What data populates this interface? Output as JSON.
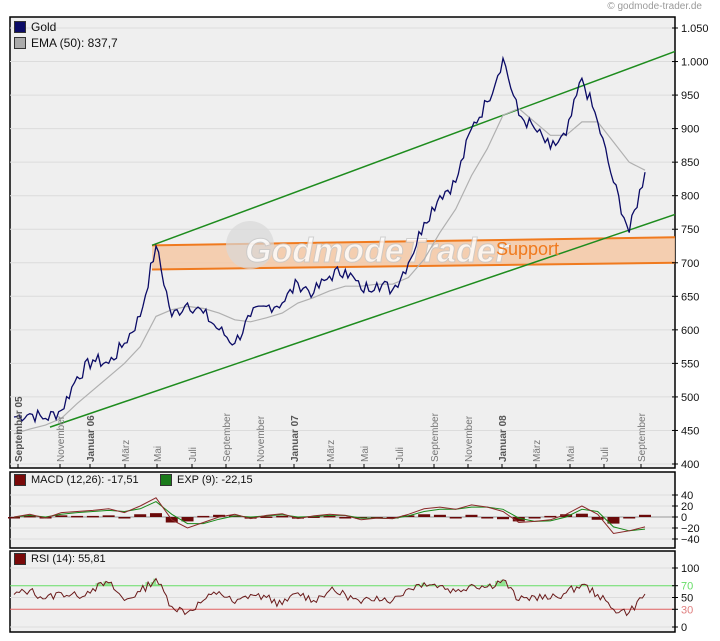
{
  "copyright": "© godmode-trader.de",
  "watermark": "GodmodeTrader",
  "chart_data": [
    {
      "type": "line",
      "title": "Gold",
      "legend": [
        {
          "label": "Gold",
          "color": "#0b0b66"
        },
        {
          "label": "EMA (50): 837,7",
          "color": "#aaaaaa"
        }
      ],
      "ylim": [
        400,
        1050
      ],
      "yticks": [
        "1.050",
        "1.000",
        "950",
        "900",
        "850",
        "800",
        "750",
        "700",
        "650",
        "600",
        "550",
        "500",
        "450",
        "400"
      ],
      "xticks": [
        "September 05",
        "November",
        "Januar 06",
        "März",
        "Mai",
        "Juli",
        "September",
        "November",
        "Januar 07",
        "März",
        "Mai",
        "Juli",
        "September",
        "November",
        "Januar 08",
        "März",
        "Mai",
        "Juli",
        "September"
      ],
      "x": [
        "2005-09",
        "2005-10",
        "2005-11",
        "2005-12",
        "2006-01",
        "2006-02",
        "2006-03",
        "2006-04",
        "2006-05a",
        "2006-05b",
        "2006-06",
        "2006-07",
        "2006-08",
        "2006-09",
        "2006-10",
        "2006-11",
        "2006-12",
        "2007-01",
        "2007-02",
        "2007-03",
        "2007-04",
        "2007-05",
        "2007-06",
        "2007-07",
        "2007-08",
        "2007-09",
        "2007-10",
        "2007-11",
        "2007-12",
        "2008-01",
        "2008-02",
        "2008-03a",
        "2008-03b",
        "2008-04",
        "2008-05",
        "2008-06",
        "2008-07a",
        "2008-07b",
        "2008-08",
        "2008-09a",
        "2008-09b"
      ],
      "series": [
        {
          "name": "Gold",
          "values": [
            470,
            475,
            468,
            480,
            530,
            555,
            550,
            580,
            620,
            725,
            620,
            640,
            625,
            600,
            580,
            620,
            635,
            640,
            670,
            655,
            680,
            690,
            660,
            670,
            660,
            700,
            760,
            800,
            820,
            900,
            940,
            1005,
            920,
            900,
            870,
            890,
            975,
            910,
            820,
            745,
            835
          ]
        },
        {
          "name": "EMA (50)",
          "values": [
            445,
            452,
            458,
            468,
            490,
            510,
            530,
            550,
            575,
            620,
            630,
            635,
            632,
            625,
            615,
            612,
            618,
            625,
            640,
            648,
            658,
            665,
            665,
            668,
            668,
            678,
            705,
            745,
            780,
            830,
            870,
            920,
            930,
            910,
            890,
            890,
            910,
            910,
            880,
            850,
            838
          ]
        }
      ],
      "annotations": [
        {
          "type": "trendline",
          "label": "upper channel",
          "color": "#1e8c1e",
          "from": [
            "2006-05a",
            725
          ],
          "to": [
            "end",
            1015
          ]
        },
        {
          "type": "trendline",
          "label": "lower channel",
          "color": "#1e8c1e",
          "from": [
            "2005-11",
            455
          ],
          "to": [
            "end",
            770
          ]
        },
        {
          "type": "zone",
          "label": "Support",
          "color": "#f08030",
          "from_x": "2006-05a",
          "top": [
            725,
            738
          ],
          "bottom": [
            690,
            700
          ]
        }
      ]
    },
    {
      "type": "line",
      "title": "MACD",
      "legend": [
        {
          "label": "MACD (12,26): -17,51",
          "color": "#7a0a0a"
        },
        {
          "label": "EXP (9): -22,15",
          "color": "#1a7a1a"
        }
      ],
      "ylim": [
        -45,
        50
      ],
      "yticks": [
        "40",
        "20",
        "0",
        "-20",
        "-40"
      ],
      "series": [
        {
          "name": "MACD",
          "values": [
            0,
            5,
            -2,
            8,
            10,
            12,
            15,
            8,
            20,
            35,
            -5,
            -20,
            -10,
            0,
            5,
            -3,
            3,
            6,
            -3,
            2,
            5,
            3,
            -5,
            -2,
            -3,
            5,
            15,
            18,
            14,
            22,
            18,
            10,
            -10,
            -8,
            -5,
            5,
            20,
            5,
            -30,
            -25,
            -18
          ]
        },
        {
          "name": "EXP",
          "values": [
            0,
            3,
            0,
            5,
            8,
            10,
            12,
            10,
            15,
            28,
            5,
            -12,
            -12,
            -4,
            2,
            0,
            2,
            4,
            0,
            1,
            3,
            3,
            -2,
            -2,
            -3,
            2,
            10,
            14,
            14,
            18,
            18,
            14,
            -2,
            -8,
            -7,
            0,
            14,
            10,
            -18,
            -25,
            -22
          ]
        },
        {
          "name": "Histogram",
          "values": [
            0,
            2,
            -2,
            3,
            2,
            2,
            3,
            -2,
            5,
            7,
            -10,
            -8,
            2,
            4,
            3,
            -3,
            1,
            2,
            -3,
            1,
            2,
            0,
            -3,
            0,
            0,
            3,
            5,
            4,
            0,
            4,
            0,
            -4,
            -8,
            0,
            2,
            5,
            6,
            -5,
            -12,
            0,
            4
          ]
        }
      ]
    },
    {
      "type": "line",
      "title": "RSI",
      "legend": [
        {
          "label": "RSI (14): 55,81",
          "color": "#7a0a0a"
        }
      ],
      "ylim": [
        0,
        110
      ],
      "yticks": [
        "100",
        "70",
        "50",
        "30",
        "0"
      ],
      "reference_lines": [
        {
          "value": 70,
          "color": "#66dd66"
        },
        {
          "value": 30,
          "color": "#e06060"
        }
      ],
      "series": [
        {
          "name": "RSI",
          "values": [
            55,
            62,
            48,
            58,
            52,
            65,
            75,
            45,
            60,
            82,
            35,
            25,
            45,
            60,
            40,
            55,
            50,
            38,
            58,
            45,
            62,
            55,
            40,
            52,
            45,
            65,
            75,
            70,
            60,
            72,
            68,
            80,
            45,
            52,
            48,
            58,
            72,
            55,
            30,
            25,
            56
          ]
        }
      ]
    }
  ],
  "main_legend": {
    "gold": "Gold",
    "ema": "EMA (50): 837,7"
  },
  "macd_legend": {
    "macd": "MACD (12,26): -17,51",
    "exp": "EXP (9): -22,15"
  },
  "rsi_legend": {
    "rsi": "RSI (14): 55,81"
  },
  "support_label": "Support",
  "rsi_levels": {
    "upper": "70",
    "lower": "30"
  }
}
